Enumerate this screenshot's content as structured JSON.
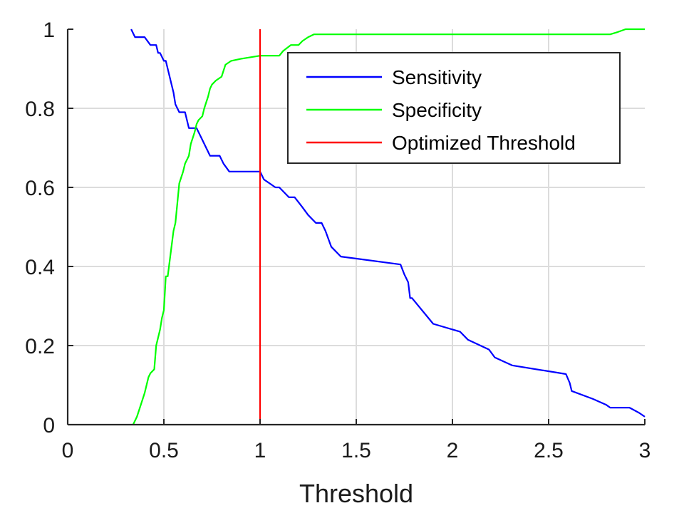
{
  "chart_data": {
    "type": "line",
    "title": "",
    "xlabel": "Threshold",
    "ylabel": "",
    "xlim": [
      0,
      3
    ],
    "ylim": [
      0,
      1
    ],
    "xticks": [
      "0",
      "0.5",
      "1",
      "1.5",
      "2",
      "2.5",
      "3"
    ],
    "yticks": [
      "0",
      "0.2",
      "0.4",
      "0.6",
      "0.8",
      "1"
    ],
    "grid": true,
    "legend_position": "top-right",
    "series": [
      {
        "name": "Sensitivity",
        "color": "#0000ff",
        "x": [
          0.33,
          0.35,
          0.4,
          0.43,
          0.46,
          0.47,
          0.48,
          0.5,
          0.51,
          0.52,
          0.53,
          0.54,
          0.55,
          0.56,
          0.58,
          0.61,
          0.63,
          0.67,
          0.7,
          0.72,
          0.74,
          0.79,
          0.81,
          0.84,
          1.0,
          1.02,
          1.08,
          1.1,
          1.15,
          1.18,
          1.22,
          1.25,
          1.29,
          1.32,
          1.34,
          1.37,
          1.42,
          1.73,
          1.75,
          1.77,
          1.78,
          1.79,
          1.9,
          2.04,
          2.08,
          2.19,
          2.22,
          2.31,
          2.59,
          2.61,
          2.62,
          2.73,
          2.8,
          2.82,
          2.92,
          2.97,
          3.0
        ],
        "y": [
          1.0,
          0.98,
          0.98,
          0.96,
          0.96,
          0.94,
          0.94,
          0.92,
          0.92,
          0.9,
          0.88,
          0.86,
          0.84,
          0.81,
          0.79,
          0.79,
          0.75,
          0.75,
          0.72,
          0.7,
          0.68,
          0.68,
          0.66,
          0.64,
          0.64,
          0.62,
          0.6,
          0.6,
          0.575,
          0.575,
          0.55,
          0.53,
          0.51,
          0.51,
          0.49,
          0.45,
          0.425,
          0.405,
          0.38,
          0.36,
          0.32,
          0.32,
          0.255,
          0.235,
          0.215,
          0.19,
          0.17,
          0.15,
          0.128,
          0.105,
          0.085,
          0.065,
          0.05,
          0.043,
          0.043,
          0.03,
          0.02
        ]
      },
      {
        "name": "Specificity",
        "color": "#00ff00",
        "x": [
          0.34,
          0.36,
          0.38,
          0.4,
          0.42,
          0.43,
          0.45,
          0.46,
          0.47,
          0.48,
          0.49,
          0.5,
          0.51,
          0.52,
          0.55,
          0.56,
          0.57,
          0.58,
          0.6,
          0.61,
          0.63,
          0.64,
          0.66,
          0.67,
          0.68,
          0.7,
          0.71,
          0.73,
          0.74,
          0.75,
          0.77,
          0.8,
          0.82,
          0.85,
          0.9,
          1.0,
          1.04,
          1.1,
          1.12,
          1.16,
          1.2,
          1.22,
          1.25,
          1.28,
          2.82,
          2.86,
          2.9,
          3.0
        ],
        "y": [
          0.0,
          0.02,
          0.05,
          0.08,
          0.12,
          0.13,
          0.14,
          0.2,
          0.22,
          0.24,
          0.27,
          0.29,
          0.375,
          0.375,
          0.49,
          0.51,
          0.56,
          0.61,
          0.64,
          0.66,
          0.68,
          0.71,
          0.74,
          0.76,
          0.77,
          0.78,
          0.8,
          0.83,
          0.85,
          0.86,
          0.87,
          0.88,
          0.91,
          0.92,
          0.925,
          0.933,
          0.933,
          0.933,
          0.945,
          0.96,
          0.96,
          0.97,
          0.98,
          0.987,
          0.987,
          0.993,
          1.0,
          1.0
        ]
      },
      {
        "name": "Optimized Threshold",
        "color": "#ff0000",
        "x": [
          1.0,
          1.0
        ],
        "y": [
          0.0,
          1.0
        ]
      }
    ]
  }
}
